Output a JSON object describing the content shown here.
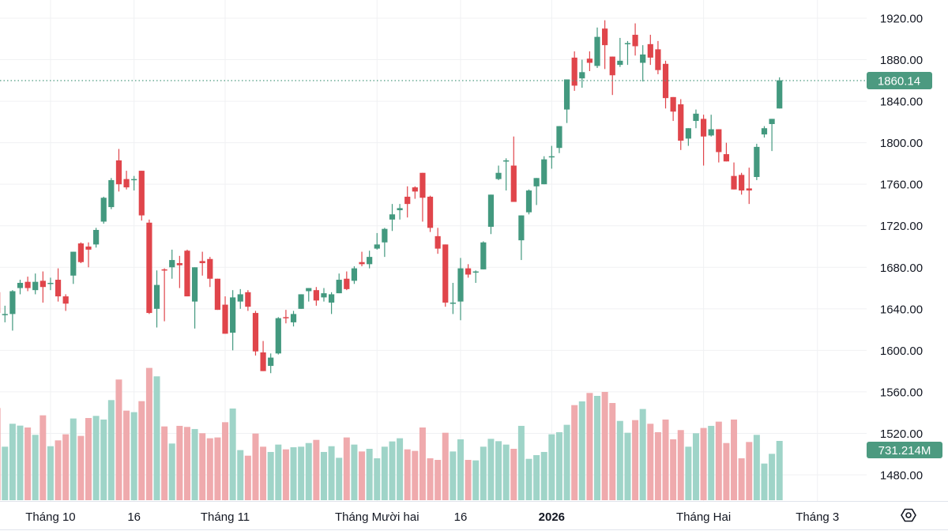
{
  "chart_data": {
    "type": "candlestick",
    "price_axis": {
      "ticks": [
        "1920.00",
        "1880.00",
        "1840.00",
        "1800.00",
        "1760.00",
        "1720.00",
        "1680.00",
        "1640.00",
        "1600.00",
        "1560.00",
        "1520.00",
        "1480.00"
      ],
      "range": [
        1480,
        1920
      ]
    },
    "x_ticks": [
      {
        "label": "Tháng 10",
        "index": 7,
        "bold": false
      },
      {
        "label": "16",
        "index": 18,
        "bold": false
      },
      {
        "label": "Tháng 11",
        "index": 30,
        "bold": false
      },
      {
        "label": "Tháng Mười hai",
        "index": 50,
        "bold": false
      },
      {
        "label": "16",
        "index": 61,
        "bold": false
      },
      {
        "label": "2026",
        "index": 73,
        "bold": true
      },
      {
        "label": "Tháng Hai",
        "index": 93,
        "bold": false
      },
      {
        "label": "Tháng 3",
        "index": 108,
        "bold": false
      }
    ],
    "last_price": "1860.14",
    "last_volume": "731.214M",
    "grid": true,
    "colors": {
      "up": "#43997f",
      "down": "#e0454b",
      "up_volume": "#9fd4c8",
      "down_volume": "#efaaad",
      "price_tag": "#4c9a80"
    },
    "ohlc": [
      [
        1656,
        1660,
        1632,
        1636
      ],
      [
        1634,
        1643,
        1627,
        1635
      ],
      [
        1635,
        1658,
        1619,
        1657
      ],
      [
        1660,
        1668,
        1654,
        1665
      ],
      [
        1666,
        1671,
        1657,
        1660
      ],
      [
        1658,
        1674,
        1654,
        1666
      ],
      [
        1667,
        1676,
        1646,
        1661
      ],
      [
        1664,
        1670,
        1658,
        1665
      ],
      [
        1668,
        1679,
        1647,
        1652
      ],
      [
        1652,
        1654,
        1638,
        1645
      ],
      [
        1672,
        1695,
        1664,
        1695
      ],
      [
        1703,
        1704,
        1684,
        1685
      ],
      [
        1700,
        1704,
        1680,
        1697
      ],
      [
        1702,
        1718,
        1699,
        1716
      ],
      [
        1724,
        1748,
        1722,
        1747
      ],
      [
        1738,
        1766,
        1736,
        1764
      ],
      [
        1783,
        1794,
        1753,
        1760
      ],
      [
        1765,
        1773,
        1755,
        1757
      ],
      [
        1764,
        1768,
        1754,
        1765
      ],
      [
        1773,
        1773,
        1725,
        1730
      ],
      [
        1723,
        1726,
        1635,
        1636
      ],
      [
        1640,
        1677,
        1622,
        1663
      ],
      [
        1678,
        1679,
        1628,
        1677
      ],
      [
        1680,
        1697,
        1669,
        1687
      ],
      [
        1684,
        1691,
        1660,
        1682
      ],
      [
        1696,
        1697,
        1652,
        1652
      ],
      [
        1647,
        1680,
        1621,
        1680
      ],
      [
        1686,
        1695,
        1672,
        1684
      ],
      [
        1688,
        1690,
        1661,
        1669
      ],
      [
        1669,
        1669,
        1639,
        1639
      ],
      [
        1644,
        1652,
        1616,
        1616
      ],
      [
        1617,
        1658,
        1600,
        1651
      ],
      [
        1647,
        1659,
        1640,
        1654
      ],
      [
        1656,
        1658,
        1638,
        1642
      ],
      [
        1636,
        1638,
        1595,
        1599
      ],
      [
        1598,
        1609,
        1580,
        1580
      ],
      [
        1585,
        1597,
        1578,
        1593
      ],
      [
        1597,
        1632,
        1596,
        1631
      ],
      [
        1632,
        1639,
        1626,
        1631
      ],
      [
        1627,
        1638,
        1623,
        1635
      ],
      [
        1640,
        1654,
        1640,
        1654
      ],
      [
        1657,
        1660,
        1647,
        1660
      ],
      [
        1658,
        1661,
        1643,
        1648
      ],
      [
        1651,
        1660,
        1647,
        1655
      ],
      [
        1646,
        1656,
        1635,
        1654
      ],
      [
        1655,
        1674,
        1655,
        1668
      ],
      [
        1669,
        1676,
        1658,
        1659
      ],
      [
        1667,
        1681,
        1664,
        1679
      ],
      [
        1685,
        1695,
        1681,
        1683
      ],
      [
        1683,
        1696,
        1679,
        1690
      ],
      [
        1698,
        1713,
        1697,
        1702
      ],
      [
        1704,
        1718,
        1690,
        1717
      ],
      [
        1726,
        1741,
        1715,
        1731
      ],
      [
        1735,
        1741,
        1726,
        1737
      ],
      [
        1748,
        1758,
        1728,
        1741
      ],
      [
        1757,
        1758,
        1746,
        1753
      ],
      [
        1771,
        1771,
        1724,
        1747
      ],
      [
        1748,
        1749,
        1714,
        1718
      ],
      [
        1710,
        1718,
        1693,
        1698
      ],
      [
        1702,
        1702,
        1642,
        1646
      ],
      [
        1645,
        1665,
        1635,
        1646
      ],
      [
        1647,
        1689,
        1629,
        1679
      ],
      [
        1679,
        1683,
        1670,
        1673
      ],
      [
        1675,
        1677,
        1665,
        1676
      ],
      [
        1678,
        1705,
        1678,
        1704
      ],
      [
        1719,
        1750,
        1712,
        1750
      ],
      [
        1765,
        1778,
        1764,
        1771
      ],
      [
        1782,
        1785,
        1754,
        1783
      ],
      [
        1778,
        1806,
        1743,
        1743
      ],
      [
        1706,
        1730,
        1687,
        1730
      ],
      [
        1733,
        1755,
        1731,
        1754
      ],
      [
        1758,
        1766,
        1740,
        1766
      ],
      [
        1760,
        1787,
        1760,
        1784
      ],
      [
        1786,
        1797,
        1775,
        1787
      ],
      [
        1795,
        1816,
        1790,
        1816
      ],
      [
        1832,
        1861,
        1819,
        1861
      ],
      [
        1882,
        1888,
        1850,
        1855
      ],
      [
        1862,
        1880,
        1853,
        1868
      ],
      [
        1881,
        1888,
        1869,
        1877
      ],
      [
        1874,
        1911,
        1872,
        1902
      ],
      [
        1910,
        1918,
        1871,
        1894
      ],
      [
        1883,
        1883,
        1846,
        1865
      ],
      [
        1875,
        1901,
        1873,
        1879
      ],
      [
        1895,
        1898,
        1875,
        1896
      ],
      [
        1904,
        1915,
        1884,
        1893
      ],
      [
        1877,
        1894,
        1859,
        1885
      ],
      [
        1895,
        1904,
        1875,
        1882
      ],
      [
        1890,
        1898,
        1866,
        1870
      ],
      [
        1876,
        1879,
        1833,
        1843
      ],
      [
        1844,
        1844,
        1821,
        1830
      ],
      [
        1837,
        1842,
        1793,
        1802
      ],
      [
        1804,
        1814,
        1797,
        1814
      ],
      [
        1821,
        1832,
        1814,
        1828
      ],
      [
        1823,
        1827,
        1778,
        1806
      ],
      [
        1807,
        1827,
        1806,
        1813
      ],
      [
        1813,
        1813,
        1781,
        1791
      ],
      [
        1789,
        1800,
        1782,
        1782
      ],
      [
        1768,
        1781,
        1755,
        1755
      ],
      [
        1769,
        1771,
        1750,
        1754
      ],
      [
        1756,
        1776,
        1741,
        1754
      ],
      [
        1767,
        1799,
        1764,
        1796
      ],
      [
        1808,
        1816,
        1805,
        1814
      ],
      [
        1818,
        1823,
        1792,
        1823
      ],
      [
        1833,
        1863,
        1833,
        1860.14
      ]
    ],
    "volume_millions": [
      1137,
      660,
      943,
      920,
      897,
      806,
      1047,
      666,
      738,
      813,
      1008,
      793,
      1014,
      1040,
      995,
      1235,
      1489,
      1105,
      1086,
      1222,
      1632,
      1528,
      910,
      699,
      917,
      904,
      878,
      826,
      764,
      774,
      962,
      1131,
      618,
      549,
      822,
      660,
      595,
      686,
      627,
      653,
      660,
      705,
      744,
      595,
      666,
      523,
      774,
      686,
      601,
      634,
      517,
      660,
      725,
      764,
      627,
      608,
      897,
      517,
      497,
      832,
      601,
      751,
      497,
      491,
      660,
      757,
      728,
      686,
      634,
      917,
      510,
      556,
      595,
      813,
      839,
      930,
      1173,
      1219,
      1323,
      1287,
      1336,
      1199,
      978,
      832,
      988,
      1125,
      943,
      839,
      995,
      751,
      865,
      660,
      826,
      891,
      917,
      969,
      705,
      995,
      517,
      718,
      806,
      452,
      572,
      731.214
    ]
  },
  "toolbar": {
    "settings_icon": "settings-hexagon-icon"
  }
}
